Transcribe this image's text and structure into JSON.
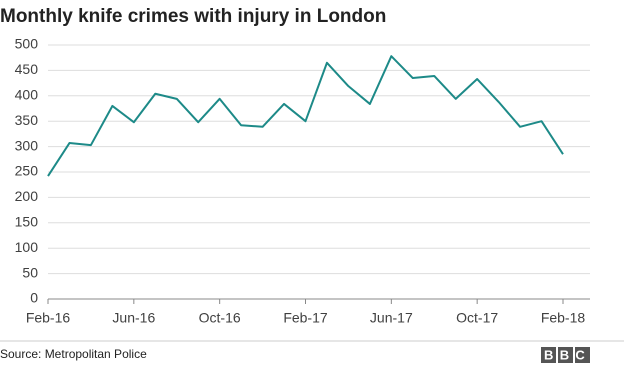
{
  "chart_data": {
    "type": "line",
    "title": "Monthly knife crimes with injury in London",
    "categories": [
      "Feb-16",
      null,
      null,
      null,
      "Jun-16",
      null,
      null,
      null,
      "Oct-16",
      null,
      null,
      null,
      "Feb-17",
      null,
      null,
      null,
      "Jun-17",
      null,
      null,
      null,
      "Oct-17",
      null,
      null,
      null,
      "Feb-18"
    ],
    "values": [
      242,
      307,
      303,
      380,
      348,
      404,
      394,
      348,
      394,
      342,
      339,
      384,
      350,
      465,
      419,
      384,
      478,
      435,
      439,
      394,
      433,
      388,
      339,
      350,
      285
    ],
    "color": "#1d8a88",
    "ylim": [
      0,
      500
    ],
    "yticks": [
      0,
      50,
      100,
      150,
      200,
      250,
      300,
      350,
      400,
      450,
      500
    ],
    "grid": true,
    "source": "Source: Metropolitan Police",
    "logo": "BBC"
  }
}
